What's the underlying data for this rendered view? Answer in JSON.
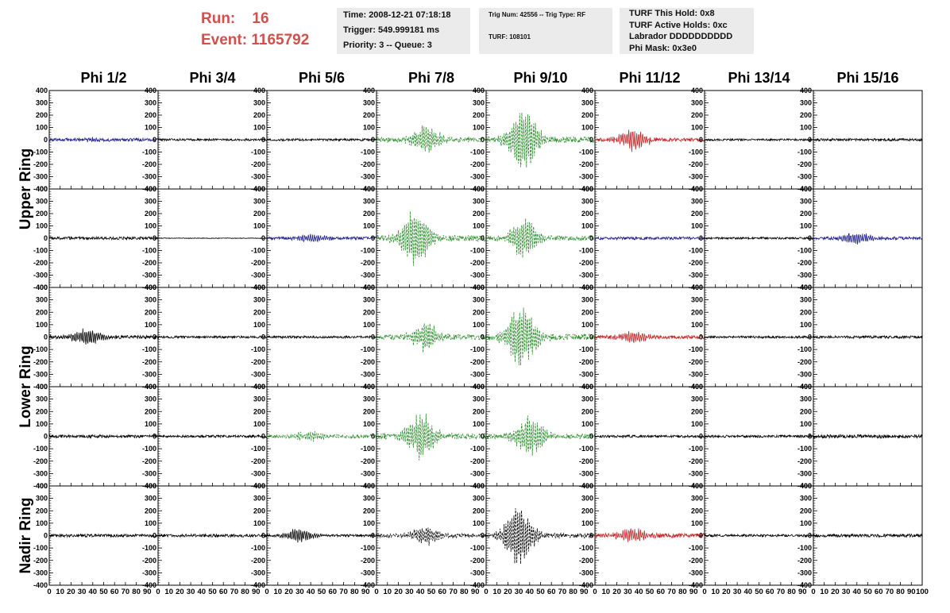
{
  "header": {
    "run_label": "Run:",
    "run_value": "16",
    "event_label": "Event:",
    "event_value": "1165792",
    "time_box": {
      "line1": "Time: 2008-12-21 07:18:18",
      "line2": "Trigger: 549.999181 ms",
      "line3": "Priority: 3 -- Queue: 3"
    },
    "trig_box": {
      "line1": "Trig Num: 42556 -- Trig Type: RF",
      "line2": "TURF: 108101"
    },
    "turf_box": {
      "line1": "TURF This Hold: 0x8",
      "line2": "TURF Active Holds: 0xc",
      "line3": "Labrador DDDDDDDDDD",
      "line4": "Phi Mask: 0x3e0"
    }
  },
  "chart_data": {
    "type": "line",
    "columns": [
      "Phi 1/2",
      "Phi 3/4",
      "Phi 5/6",
      "Phi 7/8",
      "Phi 9/10",
      "Phi 11/12",
      "Phi 13/14",
      "Phi 15/16"
    ],
    "ring_labels": [
      "Upper Ring",
      "Lower Ring",
      "Nadir Ring"
    ],
    "rows": 5,
    "ylim": [
      -400,
      400
    ],
    "yticks": [
      400,
      300,
      200,
      100,
      0,
      -100,
      -200,
      -300,
      -400
    ],
    "xlim": [
      0,
      100
    ],
    "xtick_labels": [
      "0",
      "10",
      "20",
      "30",
      "40",
      "50",
      "60",
      "70",
      "80",
      "90",
      "100"
    ],
    "colors": {
      "blue": "#1f1f8f",
      "green": "#2b8c2b",
      "red": "#c02828",
      "black": "#000000"
    },
    "panels": [
      {
        "row": 0,
        "col": 0,
        "color": "blue",
        "amp": 12,
        "burst_center": 40,
        "burst_amp": 15,
        "dashed": false
      },
      {
        "row": 0,
        "col": 1,
        "color": "black",
        "amp": 9,
        "burst_center": 50,
        "burst_amp": 0,
        "dashed": false
      },
      {
        "row": 0,
        "col": 2,
        "color": "black",
        "amp": 9,
        "burst_center": 50,
        "burst_amp": 0,
        "dashed": false
      },
      {
        "row": 0,
        "col": 3,
        "color": "green",
        "amp": 20,
        "burst_center": 45,
        "burst_amp": 110,
        "dashed": true
      },
      {
        "row": 0,
        "col": 4,
        "color": "green",
        "amp": 25,
        "burst_center": 35,
        "burst_amp": 280,
        "dashed": true
      },
      {
        "row": 0,
        "col": 5,
        "color": "red",
        "amp": 15,
        "burst_center": 35,
        "burst_amp": 90,
        "dashed": false
      },
      {
        "row": 0,
        "col": 6,
        "color": "black",
        "amp": 8,
        "burst_center": 50,
        "burst_amp": 0,
        "dashed": false
      },
      {
        "row": 0,
        "col": 7,
        "color": "black",
        "amp": 10,
        "burst_center": 50,
        "burst_amp": 0,
        "dashed": false
      },
      {
        "row": 1,
        "col": 0,
        "color": "black",
        "amp": 12,
        "burst_center": 50,
        "burst_amp": 0,
        "dashed": false
      },
      {
        "row": 1,
        "col": 1,
        "color": "black",
        "amp": 3,
        "burst_center": 50,
        "burst_amp": 0,
        "dashed": false
      },
      {
        "row": 1,
        "col": 2,
        "color": "blue",
        "amp": 12,
        "burst_center": 40,
        "burst_amp": 35,
        "dashed": false
      },
      {
        "row": 1,
        "col": 3,
        "color": "green",
        "amp": 25,
        "burst_center": 35,
        "burst_amp": 250,
        "dashed": true
      },
      {
        "row": 1,
        "col": 4,
        "color": "green",
        "amp": 20,
        "burst_center": 35,
        "burst_amp": 160,
        "dashed": true
      },
      {
        "row": 1,
        "col": 5,
        "color": "blue",
        "amp": 12,
        "burst_center": 50,
        "burst_amp": 0,
        "dashed": false
      },
      {
        "row": 1,
        "col": 6,
        "color": "black",
        "amp": 8,
        "burst_center": 50,
        "burst_amp": 0,
        "dashed": false
      },
      {
        "row": 1,
        "col": 7,
        "color": "blue",
        "amp": 12,
        "burst_center": 40,
        "burst_amp": 50,
        "dashed": false
      },
      {
        "row": 2,
        "col": 0,
        "color": "black",
        "amp": 14,
        "burst_center": 35,
        "burst_amp": 70,
        "dashed": false
      },
      {
        "row": 2,
        "col": 1,
        "color": "black",
        "amp": 9,
        "burst_center": 50,
        "burst_amp": 0,
        "dashed": false
      },
      {
        "row": 2,
        "col": 2,
        "color": "black",
        "amp": 9,
        "burst_center": 50,
        "burst_amp": 0,
        "dashed": false
      },
      {
        "row": 2,
        "col": 3,
        "color": "green",
        "amp": 20,
        "burst_center": 45,
        "burst_amp": 120,
        "dashed": true
      },
      {
        "row": 2,
        "col": 4,
        "color": "green",
        "amp": 25,
        "burst_center": 32,
        "burst_amp": 260,
        "dashed": true
      },
      {
        "row": 2,
        "col": 5,
        "color": "red",
        "amp": 15,
        "burst_center": 35,
        "burst_amp": 55,
        "dashed": false
      },
      {
        "row": 2,
        "col": 6,
        "color": "black",
        "amp": 9,
        "burst_center": 50,
        "burst_amp": 0,
        "dashed": false
      },
      {
        "row": 2,
        "col": 7,
        "color": "black",
        "amp": 10,
        "burst_center": 50,
        "burst_amp": 0,
        "dashed": false
      },
      {
        "row": 3,
        "col": 0,
        "color": "black",
        "amp": 12,
        "burst_center": 50,
        "burst_amp": 0,
        "dashed": false
      },
      {
        "row": 3,
        "col": 1,
        "color": "black",
        "amp": 10,
        "burst_center": 50,
        "burst_amp": 0,
        "dashed": false
      },
      {
        "row": 3,
        "col": 2,
        "color": "green",
        "amp": 15,
        "burst_center": 40,
        "burst_amp": 40,
        "dashed": true
      },
      {
        "row": 3,
        "col": 3,
        "color": "green",
        "amp": 25,
        "burst_center": 40,
        "burst_amp": 190,
        "dashed": true
      },
      {
        "row": 3,
        "col": 4,
        "color": "green",
        "amp": 20,
        "burst_center": 40,
        "burst_amp": 170,
        "dashed": true
      },
      {
        "row": 3,
        "col": 5,
        "color": "black",
        "amp": 10,
        "burst_center": 50,
        "burst_amp": 0,
        "dashed": false
      },
      {
        "row": 3,
        "col": 6,
        "color": "black",
        "amp": 10,
        "burst_center": 50,
        "burst_amp": 0,
        "dashed": false
      },
      {
        "row": 3,
        "col": 7,
        "color": "black",
        "amp": 14,
        "burst_center": 50,
        "burst_amp": 0,
        "dashed": false
      },
      {
        "row": 4,
        "col": 0,
        "color": "black",
        "amp": 12,
        "burst_center": 50,
        "burst_amp": 0,
        "dashed": false
      },
      {
        "row": 4,
        "col": 1,
        "color": "black",
        "amp": 12,
        "burst_center": 50,
        "burst_amp": 0,
        "dashed": false
      },
      {
        "row": 4,
        "col": 2,
        "color": "black",
        "amp": 10,
        "burst_center": 30,
        "burst_amp": 60,
        "dashed": false
      },
      {
        "row": 4,
        "col": 3,
        "color": "black",
        "amp": 15,
        "burst_center": 45,
        "burst_amp": 80,
        "dashed": true
      },
      {
        "row": 4,
        "col": 4,
        "color": "black",
        "amp": 20,
        "burst_center": 30,
        "burst_amp": 250,
        "dashed": true
      },
      {
        "row": 4,
        "col": 5,
        "color": "red",
        "amp": 18,
        "burst_center": 35,
        "burst_amp": 60,
        "dashed": false
      },
      {
        "row": 4,
        "col": 6,
        "color": "black",
        "amp": 10,
        "burst_center": 50,
        "burst_amp": 0,
        "dashed": false
      },
      {
        "row": 4,
        "col": 7,
        "color": "black",
        "amp": 12,
        "burst_center": 50,
        "burst_amp": 0,
        "dashed": false
      }
    ]
  }
}
